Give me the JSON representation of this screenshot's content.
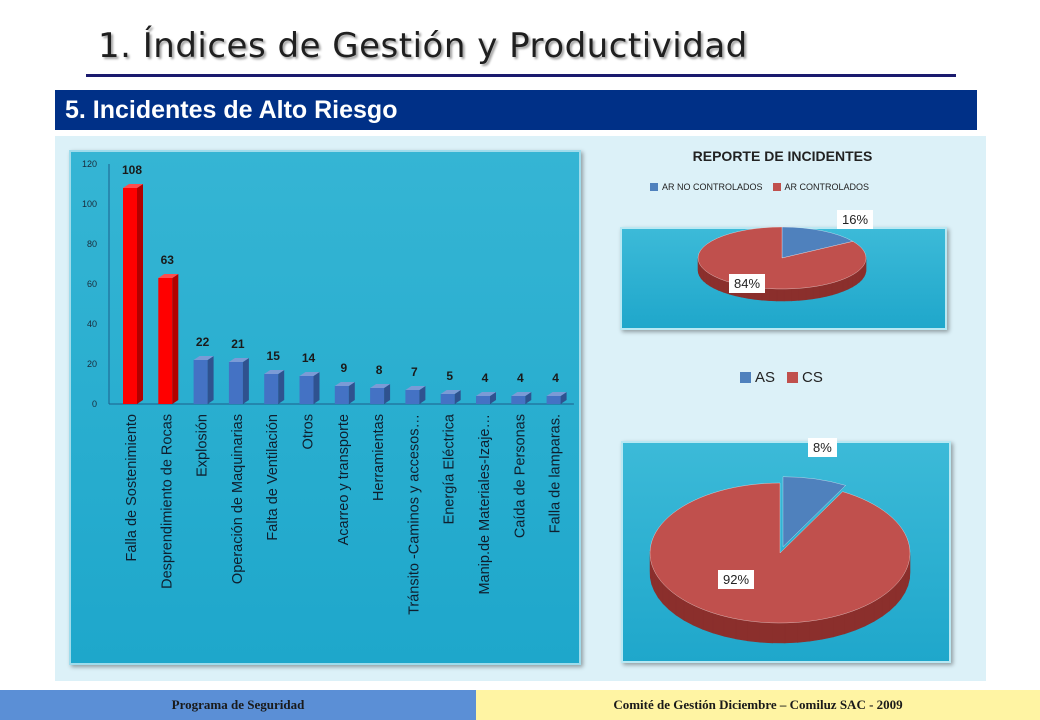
{
  "slide": {
    "title": "1. Índices de Gestión y Productividad",
    "section": "5. Incidentes de Alto Riesgo"
  },
  "footer": {
    "left": "Programa de Seguridad",
    "right": "Comité de Gestión Diciembre – Comiluz  SAC - 2009"
  },
  "colors": {
    "red": "#ff0000",
    "blue": "#4472c4",
    "pie_blue": "#4f81bd",
    "pie_red": "#c0504d"
  },
  "chart_data": [
    {
      "type": "bar",
      "categories": [
        "Falla de Sostenimiento",
        "Desprendimiento de Rocas",
        "Explosión",
        "Operación de Maquinarias",
        "Falta de Ventilación",
        "Otros",
        "Acarreo y transporte",
        "Herramientas",
        "Tránsito -Caminos y accesos…",
        "Energía Eléctrica",
        "Manip.de Materiales-Izaje…",
        "Caída de Personas",
        "Falla de lamparas."
      ],
      "values": [
        108,
        63,
        22,
        21,
        15,
        14,
        9,
        8,
        7,
        5,
        4,
        4,
        4
      ],
      "highlight_red": [
        true,
        true,
        false,
        false,
        false,
        false,
        false,
        false,
        false,
        false,
        false,
        false,
        false
      ],
      "ylim": [
        0,
        120
      ],
      "yticks": [
        "0",
        "20",
        "40",
        "60",
        "80",
        "100",
        "120"
      ],
      "grid": false
    },
    {
      "type": "pie",
      "title": "REPORTE DE INCIDENTES",
      "legend": [
        "AR NO CONTROLADOS",
        "AR CONTROLADOS"
      ],
      "legend_position": "top",
      "values": [
        16,
        84
      ],
      "labels": [
        "16%",
        "84%"
      ]
    },
    {
      "type": "pie",
      "legend": [
        "AS",
        "CS"
      ],
      "legend_position": "top",
      "values": [
        8,
        92
      ],
      "labels": [
        "8%",
        "92%"
      ]
    }
  ]
}
